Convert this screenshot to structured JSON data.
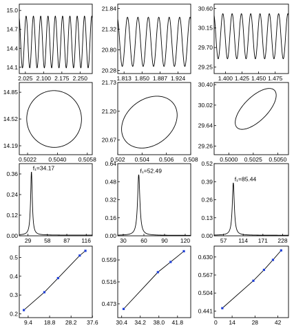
{
  "chart_data": [
    {
      "id": "r1c1",
      "type": "line",
      "pattern": "sine",
      "cycles": 10,
      "amplitude": 0.41,
      "offset": 14.5,
      "xlim": [
        2.0,
        2.3
      ],
      "ylim": [
        14.0,
        15.1
      ],
      "xticks": [
        "2.025",
        "2.100",
        "2.175",
        "2.250"
      ],
      "xtick_values": [
        2.025,
        2.1,
        2.175,
        2.25
      ],
      "yticks": [
        "15.0",
        "14.7",
        "14.4",
        "14.1"
      ],
      "ytick_values": [
        15.0,
        14.7,
        14.4,
        14.1
      ]
    },
    {
      "id": "r1c2",
      "type": "line",
      "pattern": "sine",
      "cycles": 7,
      "amplitude": 0.62,
      "offset": 21.0,
      "xlim": [
        1.8,
        1.95
      ],
      "ylim": [
        20.2,
        21.95
      ],
      "xticks": [
        "1.813",
        "1.850",
        "1.887",
        "1.924"
      ],
      "xtick_values": [
        1.813,
        1.85,
        1.887,
        1.924
      ],
      "yticks": [
        "21.84",
        "21.32",
        "20.80",
        "20.28"
      ],
      "ytick_values": [
        21.84,
        21.32,
        20.8,
        20.28
      ]
    },
    {
      "id": "r1c3",
      "type": "line",
      "pattern": "sine",
      "cycles": 8,
      "amplitude": 0.52,
      "offset": 29.96,
      "xlim": [
        1.383,
        1.495
      ],
      "ylim": [
        29.1,
        30.7
      ],
      "xticks": [
        "1.400",
        "1.425",
        "1.450",
        "1.475"
      ],
      "xtick_values": [
        1.4,
        1.425,
        1.45,
        1.475
      ],
      "yticks": [
        "30.60",
        "30.15",
        "29.70",
        "29.25"
      ],
      "ytick_values": [
        30.6,
        30.15,
        29.7,
        29.25
      ]
    },
    {
      "id": "r2c1",
      "type": "line",
      "pattern": "ellipse",
      "center": [
        0.5038,
        14.52
      ],
      "a": 0.00165,
      "b": 0.35,
      "rotation": -6,
      "xlim": [
        0.5017,
        0.5061
      ],
      "ylim": [
        14.08,
        14.97
      ],
      "xticks": [
        "0.5022",
        "0.5040",
        "0.5058"
      ],
      "xtick_values": [
        0.5022,
        0.504,
        0.5058
      ],
      "yticks": [
        "14.85",
        "14.52",
        "14.19"
      ],
      "ytick_values": [
        14.85,
        14.52,
        14.19
      ]
    },
    {
      "id": "r2c2",
      "type": "line",
      "pattern": "ellipse",
      "center": [
        0.5046,
        21.0
      ],
      "a": 0.0025,
      "b": 0.42,
      "rotation": -38,
      "xlim": [
        0.502,
        0.508
      ],
      "ylim": [
        20.4,
        21.73
      ],
      "xticks": [
        "0.502",
        "0.504",
        "0.506",
        "0.508"
      ],
      "xtick_values": [
        0.502,
        0.504,
        0.506,
        0.508
      ],
      "yticks": [
        "21.73",
        "21.20",
        "20.67"
      ],
      "ytick_values": [
        21.73,
        21.2,
        20.67
      ]
    },
    {
      "id": "r2c3",
      "type": "line",
      "pattern": "ellipse",
      "center": [
        0.50275,
        29.95
      ],
      "a": 0.0027,
      "b": 0.22,
      "rotation": -45,
      "xlim": [
        0.4985,
        0.5061
      ],
      "ylim": [
        29.1,
        30.44
      ],
      "xticks": [
        "0.5000",
        "0.5025",
        "0.5050"
      ],
      "xtick_values": [
        0.5,
        0.5025,
        0.505
      ],
      "yticks": [
        "30.40",
        "30.02",
        "29.64",
        "29.26"
      ],
      "ytick_values": [
        30.4,
        30.02,
        29.64,
        29.26
      ]
    },
    {
      "id": "r3c1",
      "type": "line",
      "pattern": "peak",
      "peak_x": 34.17,
      "peak_y": 0.37,
      "width": 1.5,
      "annotation": "f₁=34.17",
      "xlim": [
        16,
        125
      ],
      "ylim": [
        0,
        0.42
      ],
      "xticks": [
        "29",
        "58",
        "87",
        "116"
      ],
      "xtick_values": [
        29,
        58,
        87,
        116
      ],
      "yticks": [
        "0.36",
        "0.24",
        "0.12",
        "0.00"
      ],
      "ytick_values": [
        0.36,
        0.24,
        0.12,
        0.0
      ]
    },
    {
      "id": "r3c2",
      "type": "line",
      "pattern": "peak",
      "peak_x": 52.49,
      "peak_y": 0.54,
      "width": 2.0,
      "annotation": "f₁=52.49",
      "xlim": [
        22,
        128
      ],
      "ylim": [
        0,
        0.64
      ],
      "xticks": [
        "30",
        "60",
        "90",
        "120"
      ],
      "xtick_values": [
        30,
        60,
        90,
        120
      ],
      "yticks": [
        "0.64",
        "0.48",
        "0.32",
        "0.16",
        "0.00"
      ],
      "ytick_values": [
        0.64,
        0.48,
        0.32,
        0.16,
        0.0
      ]
    },
    {
      "id": "r3c3",
      "type": "line",
      "pattern": "peak",
      "peak_x": 85.44,
      "peak_y": 0.38,
      "width": 3.5,
      "annotation": "f₁=85.44",
      "xlim": [
        30,
        245
      ],
      "ylim": [
        0,
        0.52
      ],
      "xticks": [
        "57",
        "114",
        "171",
        "228"
      ],
      "xtick_values": [
        57,
        114,
        171,
        228
      ],
      "yticks": [
        "0.52",
        "0.39",
        "0.26",
        "0.13",
        "0.00"
      ],
      "ytick_values": [
        0.52,
        0.39,
        0.26,
        0.13,
        0.0
      ]
    },
    {
      "id": "r4c1",
      "type": "line",
      "pattern": "points",
      "x": [
        7.5,
        16.5,
        22.5,
        32.0,
        34.5
      ],
      "y": [
        0.22,
        0.315,
        0.39,
        0.51,
        0.535
      ],
      "xlim": [
        5.5,
        37.5
      ],
      "ylim": [
        0.18,
        0.56
      ],
      "xticks": [
        "9.4",
        "18.8",
        "28.2",
        "37.6"
      ],
      "xtick_values": [
        9.4,
        18.8,
        28.2,
        37.6
      ],
      "yticks": [
        "0.5",
        "0.4",
        "0.3",
        "0.2"
      ],
      "ytick_values": [
        0.5,
        0.4,
        0.3,
        0.2
      ]
    },
    {
      "id": "r4c2",
      "type": "line",
      "pattern": "points",
      "x": [
        30.8,
        37.8,
        40.4,
        43.1
      ],
      "y": [
        0.463,
        0.535,
        0.555,
        0.576
      ],
      "xlim": [
        29.6,
        44.5
      ],
      "ylim": [
        0.446,
        0.586
      ],
      "xticks": [
        "30.4",
        "34.2",
        "38.0",
        "41.8"
      ],
      "xtick_values": [
        30.4,
        34.2,
        38.0,
        41.8
      ],
      "yticks": [
        "0.559",
        "0.516",
        "0.473"
      ],
      "ytick_values": [
        0.559,
        0.516,
        0.473
      ]
    },
    {
      "id": "r4c3",
      "type": "line",
      "pattern": "points",
      "x": [
        8.0,
        27.0,
        33.5,
        39.0,
        44.0
      ],
      "y": [
        0.451,
        0.547,
        0.585,
        0.62,
        0.653
      ],
      "xlim": [
        3.0,
        48.5
      ],
      "ylim": [
        0.418,
        0.668
      ],
      "xticks": [
        "14",
        "28",
        "42"
      ],
      "xtick_values": [
        14,
        28,
        42
      ],
      "xticks_prefix": [
        [
          "0",
          4
        ]
      ],
      "yticks": [
        "0.630",
        "0.567",
        "0.504",
        "0.441"
      ],
      "ytick_values": [
        0.63,
        0.567,
        0.504,
        0.441
      ]
    }
  ],
  "colors": {
    "line": "#000000",
    "point": "#1f3fd6",
    "frame": "#000000"
  }
}
